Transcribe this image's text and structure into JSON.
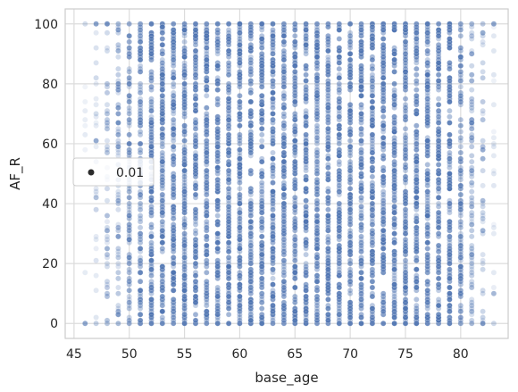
{
  "chart_data": {
    "type": "scatter",
    "title": "",
    "xlabel": "base_age",
    "ylabel": "AF_R",
    "xlim": [
      44.2,
      84.3
    ],
    "ylim": [
      -5,
      105
    ],
    "xticks": [
      45,
      50,
      55,
      60,
      65,
      70,
      75,
      80
    ],
    "yticks": [
      0,
      20,
      40,
      60,
      80,
      100
    ],
    "grid": true,
    "legend": {
      "placement": "center-left",
      "entries": [
        "0.01"
      ]
    },
    "series": [
      {
        "name": "0.01",
        "color": "#4c72b0",
        "x_integer_range": [
          46,
          83
        ],
        "y_range": [
          0,
          100
        ],
        "dense_x_range": [
          52,
          79
        ],
        "point_alpha": 0.12,
        "note_points": [
          [
            46,
            0
          ],
          [
            47,
            100
          ],
          [
            47,
            61
          ],
          [
            48,
            100
          ],
          [
            83,
            100
          ],
          [
            83,
            10
          ]
        ]
      }
    ]
  }
}
